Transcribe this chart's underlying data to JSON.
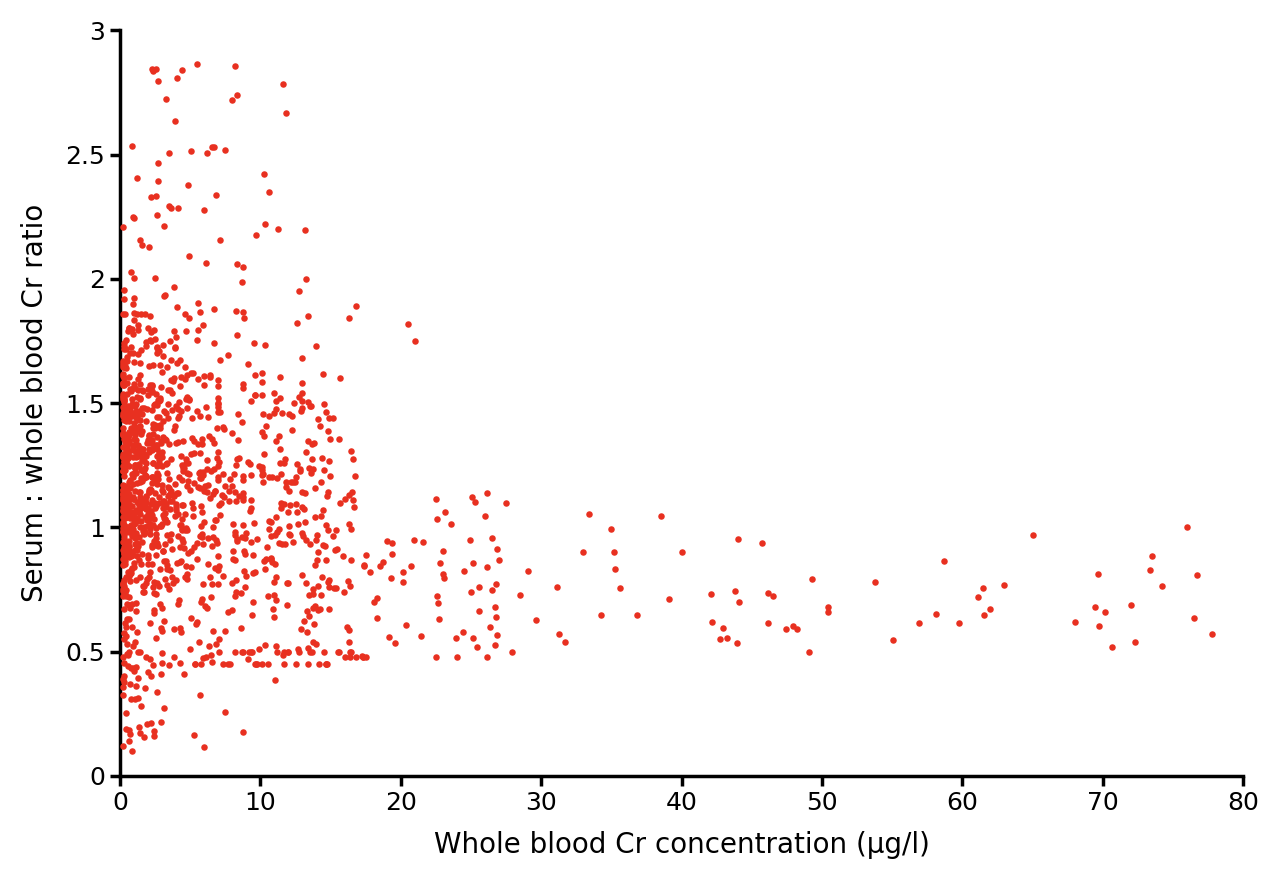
{
  "title": "",
  "xlabel": "Whole blood Cr concentration (μg/l)",
  "ylabel": "Serum : whole blood Cr ratio",
  "xlim": [
    0,
    80
  ],
  "ylim": [
    0,
    3
  ],
  "xticks": [
    0,
    10,
    20,
    30,
    40,
    50,
    60,
    70,
    80
  ],
  "yticks": [
    0,
    0.5,
    1,
    1.5,
    2,
    2.5,
    3
  ],
  "dot_color": "#e83020",
  "dot_size": 22,
  "background_color": "#ffffff",
  "seed": 99
}
